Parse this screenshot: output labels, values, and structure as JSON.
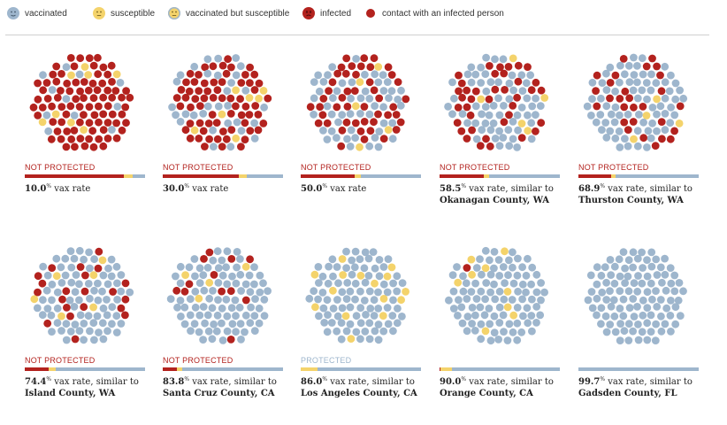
{
  "legend": {
    "vaccinated": "vaccinated",
    "susceptible": "susceptible",
    "vaccinated_susceptible": "vaccinated but susceptible",
    "infected": "infected",
    "contact": "contact with an infected person"
  },
  "colors": {
    "vaccinated": "#9eb6cd",
    "susceptible": "#f4d36b",
    "infected": "#b3221e",
    "contact": "#b3221e",
    "not_protected": "#b3221e",
    "protected": "#9eb6cd",
    "bar_vaccinated": "#9eb6cd",
    "bar_susceptible": "#f4d36b",
    "bar_infected": "#b3221e"
  },
  "chart_data": {
    "type": "scatter",
    "description_of_units": "each panel is a simulated population of dots",
    "panels": [
      {
        "status": "NOT PROTECTED",
        "protected": false,
        "rate": "10.0",
        "rate_suffix": " vax rate",
        "location": "",
        "vaccinated_share": 0.1,
        "infected_share": 0.82,
        "susceptible_share": 0.08
      },
      {
        "status": "NOT PROTECTED",
        "protected": false,
        "rate": "30.0",
        "rate_suffix": " vax rate",
        "location": "",
        "vaccinated_share": 0.3,
        "infected_share": 0.63,
        "susceptible_share": 0.07
      },
      {
        "status": "NOT PROTECTED",
        "protected": false,
        "rate": "50.0",
        "rate_suffix": " vax rate",
        "location": "",
        "vaccinated_share": 0.5,
        "infected_share": 0.45,
        "susceptible_share": 0.05
      },
      {
        "status": "NOT PROTECTED",
        "protected": false,
        "rate": "58.5",
        "rate_suffix": " vax rate, similar to",
        "location": "Okanagan County, WA",
        "vaccinated_share": 0.585,
        "infected_share": 0.37,
        "susceptible_share": 0.045
      },
      {
        "status": "NOT PROTECTED",
        "protected": false,
        "rate": "68.9",
        "rate_suffix": " vax rate, similar to",
        "location": "Thurston County, WA",
        "vaccinated_share": 0.689,
        "infected_share": 0.27,
        "susceptible_share": 0.041
      },
      {
        "status": "NOT PROTECTED",
        "protected": false,
        "rate": "74.4",
        "rate_suffix": " vax rate, similar to",
        "location": "Island County, WA",
        "vaccinated_share": 0.744,
        "infected_share": 0.2,
        "susceptible_share": 0.056
      },
      {
        "status": "NOT PROTECTED",
        "protected": false,
        "rate": "83.8",
        "rate_suffix": " vax rate, similar to",
        "location": "Santa Cruz County, CA",
        "vaccinated_share": 0.838,
        "infected_share": 0.12,
        "susceptible_share": 0.042
      },
      {
        "status": "PROTECTED",
        "protected": true,
        "rate": "86.0",
        "rate_suffix": " vax rate, similar to",
        "location": "Los Angeles County, CA",
        "vaccinated_share": 0.86,
        "infected_share": 0.0,
        "susceptible_share": 0.14
      },
      {
        "status": "",
        "protected": true,
        "rate": "90.0",
        "rate_suffix": " vax rate, similar to",
        "location": "Orange County, CA",
        "vaccinated_share": 0.9,
        "infected_share": 0.01,
        "susceptible_share": 0.09
      },
      {
        "status": "",
        "protected": true,
        "rate": "99.7",
        "rate_suffix": " vax rate, similar to",
        "location": "Gadsden County, FL",
        "vaccinated_share": 0.997,
        "infected_share": 0.0,
        "susceptible_share": 0.003
      }
    ]
  }
}
